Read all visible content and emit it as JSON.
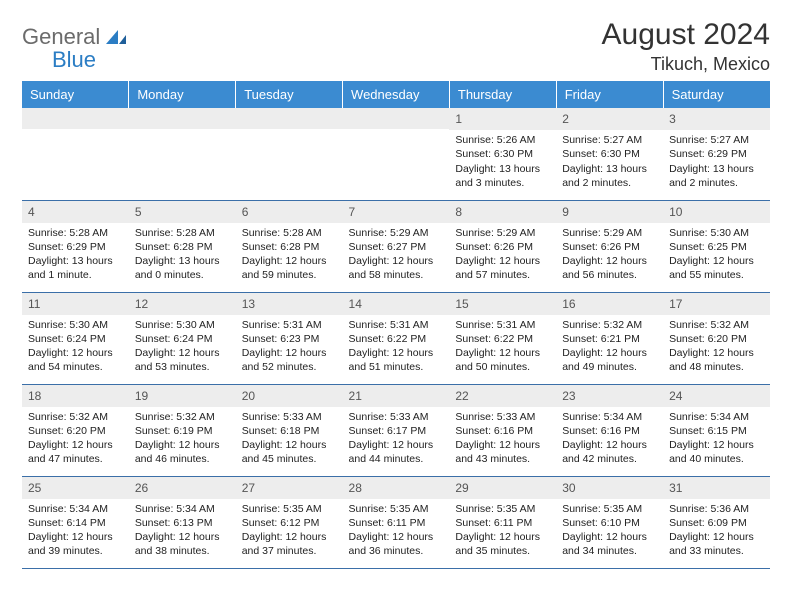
{
  "logo": {
    "text1": "General",
    "text2": "Blue"
  },
  "title": "August 2024",
  "location": "Tikuch, Mexico",
  "colors": {
    "header_bg": "#3b8bd1",
    "header_text": "#ffffff",
    "daynum_bg": "#ededed",
    "border": "#3b6fa8",
    "logo_gray": "#6b6b6b",
    "logo_blue": "#2b7dc4"
  },
  "day_headers": [
    "Sunday",
    "Monday",
    "Tuesday",
    "Wednesday",
    "Thursday",
    "Friday",
    "Saturday"
  ],
  "weeks": [
    [
      {
        "day": "",
        "sunrise": "",
        "sunset": "",
        "daylight": ""
      },
      {
        "day": "",
        "sunrise": "",
        "sunset": "",
        "daylight": ""
      },
      {
        "day": "",
        "sunrise": "",
        "sunset": "",
        "daylight": ""
      },
      {
        "day": "",
        "sunrise": "",
        "sunset": "",
        "daylight": ""
      },
      {
        "day": "1",
        "sunrise": "Sunrise: 5:26 AM",
        "sunset": "Sunset: 6:30 PM",
        "daylight": "Daylight: 13 hours and 3 minutes."
      },
      {
        "day": "2",
        "sunrise": "Sunrise: 5:27 AM",
        "sunset": "Sunset: 6:30 PM",
        "daylight": "Daylight: 13 hours and 2 minutes."
      },
      {
        "day": "3",
        "sunrise": "Sunrise: 5:27 AM",
        "sunset": "Sunset: 6:29 PM",
        "daylight": "Daylight: 13 hours and 2 minutes."
      }
    ],
    [
      {
        "day": "4",
        "sunrise": "Sunrise: 5:28 AM",
        "sunset": "Sunset: 6:29 PM",
        "daylight": "Daylight: 13 hours and 1 minute."
      },
      {
        "day": "5",
        "sunrise": "Sunrise: 5:28 AM",
        "sunset": "Sunset: 6:28 PM",
        "daylight": "Daylight: 13 hours and 0 minutes."
      },
      {
        "day": "6",
        "sunrise": "Sunrise: 5:28 AM",
        "sunset": "Sunset: 6:28 PM",
        "daylight": "Daylight: 12 hours and 59 minutes."
      },
      {
        "day": "7",
        "sunrise": "Sunrise: 5:29 AM",
        "sunset": "Sunset: 6:27 PM",
        "daylight": "Daylight: 12 hours and 58 minutes."
      },
      {
        "day": "8",
        "sunrise": "Sunrise: 5:29 AM",
        "sunset": "Sunset: 6:26 PM",
        "daylight": "Daylight: 12 hours and 57 minutes."
      },
      {
        "day": "9",
        "sunrise": "Sunrise: 5:29 AM",
        "sunset": "Sunset: 6:26 PM",
        "daylight": "Daylight: 12 hours and 56 minutes."
      },
      {
        "day": "10",
        "sunrise": "Sunrise: 5:30 AM",
        "sunset": "Sunset: 6:25 PM",
        "daylight": "Daylight: 12 hours and 55 minutes."
      }
    ],
    [
      {
        "day": "11",
        "sunrise": "Sunrise: 5:30 AM",
        "sunset": "Sunset: 6:24 PM",
        "daylight": "Daylight: 12 hours and 54 minutes."
      },
      {
        "day": "12",
        "sunrise": "Sunrise: 5:30 AM",
        "sunset": "Sunset: 6:24 PM",
        "daylight": "Daylight: 12 hours and 53 minutes."
      },
      {
        "day": "13",
        "sunrise": "Sunrise: 5:31 AM",
        "sunset": "Sunset: 6:23 PM",
        "daylight": "Daylight: 12 hours and 52 minutes."
      },
      {
        "day": "14",
        "sunrise": "Sunrise: 5:31 AM",
        "sunset": "Sunset: 6:22 PM",
        "daylight": "Daylight: 12 hours and 51 minutes."
      },
      {
        "day": "15",
        "sunrise": "Sunrise: 5:31 AM",
        "sunset": "Sunset: 6:22 PM",
        "daylight": "Daylight: 12 hours and 50 minutes."
      },
      {
        "day": "16",
        "sunrise": "Sunrise: 5:32 AM",
        "sunset": "Sunset: 6:21 PM",
        "daylight": "Daylight: 12 hours and 49 minutes."
      },
      {
        "day": "17",
        "sunrise": "Sunrise: 5:32 AM",
        "sunset": "Sunset: 6:20 PM",
        "daylight": "Daylight: 12 hours and 48 minutes."
      }
    ],
    [
      {
        "day": "18",
        "sunrise": "Sunrise: 5:32 AM",
        "sunset": "Sunset: 6:20 PM",
        "daylight": "Daylight: 12 hours and 47 minutes."
      },
      {
        "day": "19",
        "sunrise": "Sunrise: 5:32 AM",
        "sunset": "Sunset: 6:19 PM",
        "daylight": "Daylight: 12 hours and 46 minutes."
      },
      {
        "day": "20",
        "sunrise": "Sunrise: 5:33 AM",
        "sunset": "Sunset: 6:18 PM",
        "daylight": "Daylight: 12 hours and 45 minutes."
      },
      {
        "day": "21",
        "sunrise": "Sunrise: 5:33 AM",
        "sunset": "Sunset: 6:17 PM",
        "daylight": "Daylight: 12 hours and 44 minutes."
      },
      {
        "day": "22",
        "sunrise": "Sunrise: 5:33 AM",
        "sunset": "Sunset: 6:16 PM",
        "daylight": "Daylight: 12 hours and 43 minutes."
      },
      {
        "day": "23",
        "sunrise": "Sunrise: 5:34 AM",
        "sunset": "Sunset: 6:16 PM",
        "daylight": "Daylight: 12 hours and 42 minutes."
      },
      {
        "day": "24",
        "sunrise": "Sunrise: 5:34 AM",
        "sunset": "Sunset: 6:15 PM",
        "daylight": "Daylight: 12 hours and 40 minutes."
      }
    ],
    [
      {
        "day": "25",
        "sunrise": "Sunrise: 5:34 AM",
        "sunset": "Sunset: 6:14 PM",
        "daylight": "Daylight: 12 hours and 39 minutes."
      },
      {
        "day": "26",
        "sunrise": "Sunrise: 5:34 AM",
        "sunset": "Sunset: 6:13 PM",
        "daylight": "Daylight: 12 hours and 38 minutes."
      },
      {
        "day": "27",
        "sunrise": "Sunrise: 5:35 AM",
        "sunset": "Sunset: 6:12 PM",
        "daylight": "Daylight: 12 hours and 37 minutes."
      },
      {
        "day": "28",
        "sunrise": "Sunrise: 5:35 AM",
        "sunset": "Sunset: 6:11 PM",
        "daylight": "Daylight: 12 hours and 36 minutes."
      },
      {
        "day": "29",
        "sunrise": "Sunrise: 5:35 AM",
        "sunset": "Sunset: 6:11 PM",
        "daylight": "Daylight: 12 hours and 35 minutes."
      },
      {
        "day": "30",
        "sunrise": "Sunrise: 5:35 AM",
        "sunset": "Sunset: 6:10 PM",
        "daylight": "Daylight: 12 hours and 34 minutes."
      },
      {
        "day": "31",
        "sunrise": "Sunrise: 5:36 AM",
        "sunset": "Sunset: 6:09 PM",
        "daylight": "Daylight: 12 hours and 33 minutes."
      }
    ]
  ]
}
